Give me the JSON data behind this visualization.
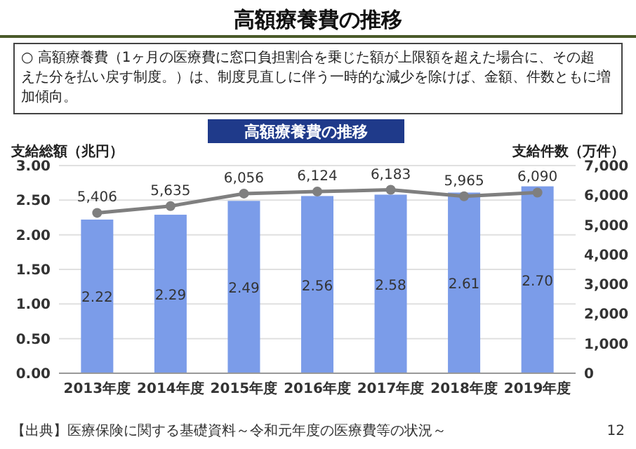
{
  "chart_data": {
    "type": "bar",
    "title": "高額療養費の推移",
    "subtitle": "○ 高額療養費（1ヶ月の医療費に窓口負担割合を乗じた額が上限額を超えた場合に、その超えた分を払い戻す制度。）は、制度見直しに伴う一時的な減少を除けば、金額、件数ともに増加傾向。",
    "annotations": [
      "高額療養費の推移",
      "【出典】医療保険に関する基礎資料～令和元年度の医療費等の状況～",
      "12"
    ],
    "ylabel": "支給総額（兆円）",
    "y2label": "支給件数（万件）",
    "categories": [
      "2013年度",
      "2014年度",
      "2015年度",
      "2016年度",
      "2017年度",
      "2018年度",
      "2019年度"
    ],
    "series": [
      {
        "color": "#7b9ce9",
        "values": [
          2.22,
          2.29,
          2.49,
          2.56,
          2.58,
          2.61,
          2.7
        ],
        "value_labels": [
          "2.22",
          "2.29",
          "2.49",
          "2.56",
          "2.58",
          "2.61",
          "2.70"
        ]
      },
      {
        "type": "line",
        "axis": "y2",
        "color": "#7f7f7f",
        "marker": "circle",
        "values": [
          5406,
          5635,
          6056,
          6124,
          6183,
          5965,
          6090
        ],
        "value_labels": [
          "5,406",
          "5,635",
          "6,056",
          "6,124",
          "6,183",
          "5,965",
          "6,090"
        ]
      }
    ],
    "ylim": [
      0,
      3
    ],
    "yticks": [
      {
        "value": 0,
        "label": "0.00"
      },
      {
        "value": 0.5,
        "label": "0.50"
      },
      {
        "value": 1,
        "label": "1.00"
      },
      {
        "value": 1.5,
        "label": "1.50"
      },
      {
        "value": 2,
        "label": "2.00"
      },
      {
        "value": 2.5,
        "label": "2.50"
      },
      {
        "value": 3,
        "label": "3.00"
      }
    ],
    "y2lim": [
      0,
      7000
    ],
    "y2ticks": [
      0,
      {
        "value": 1000,
        "label": "1,000"
      },
      {
        "value": 2000,
        "label": "2,000"
      },
      {
        "value": 3000,
        "label": "3,000"
      },
      {
        "value": 4000,
        "label": "4,000"
      },
      {
        "value": 5000,
        "label": "5,000"
      },
      {
        "value": 6000,
        "label": "6,000"
      },
      {
        "value": 7000,
        "label": "7,000"
      }
    ],
    "grid": "y"
  }
}
